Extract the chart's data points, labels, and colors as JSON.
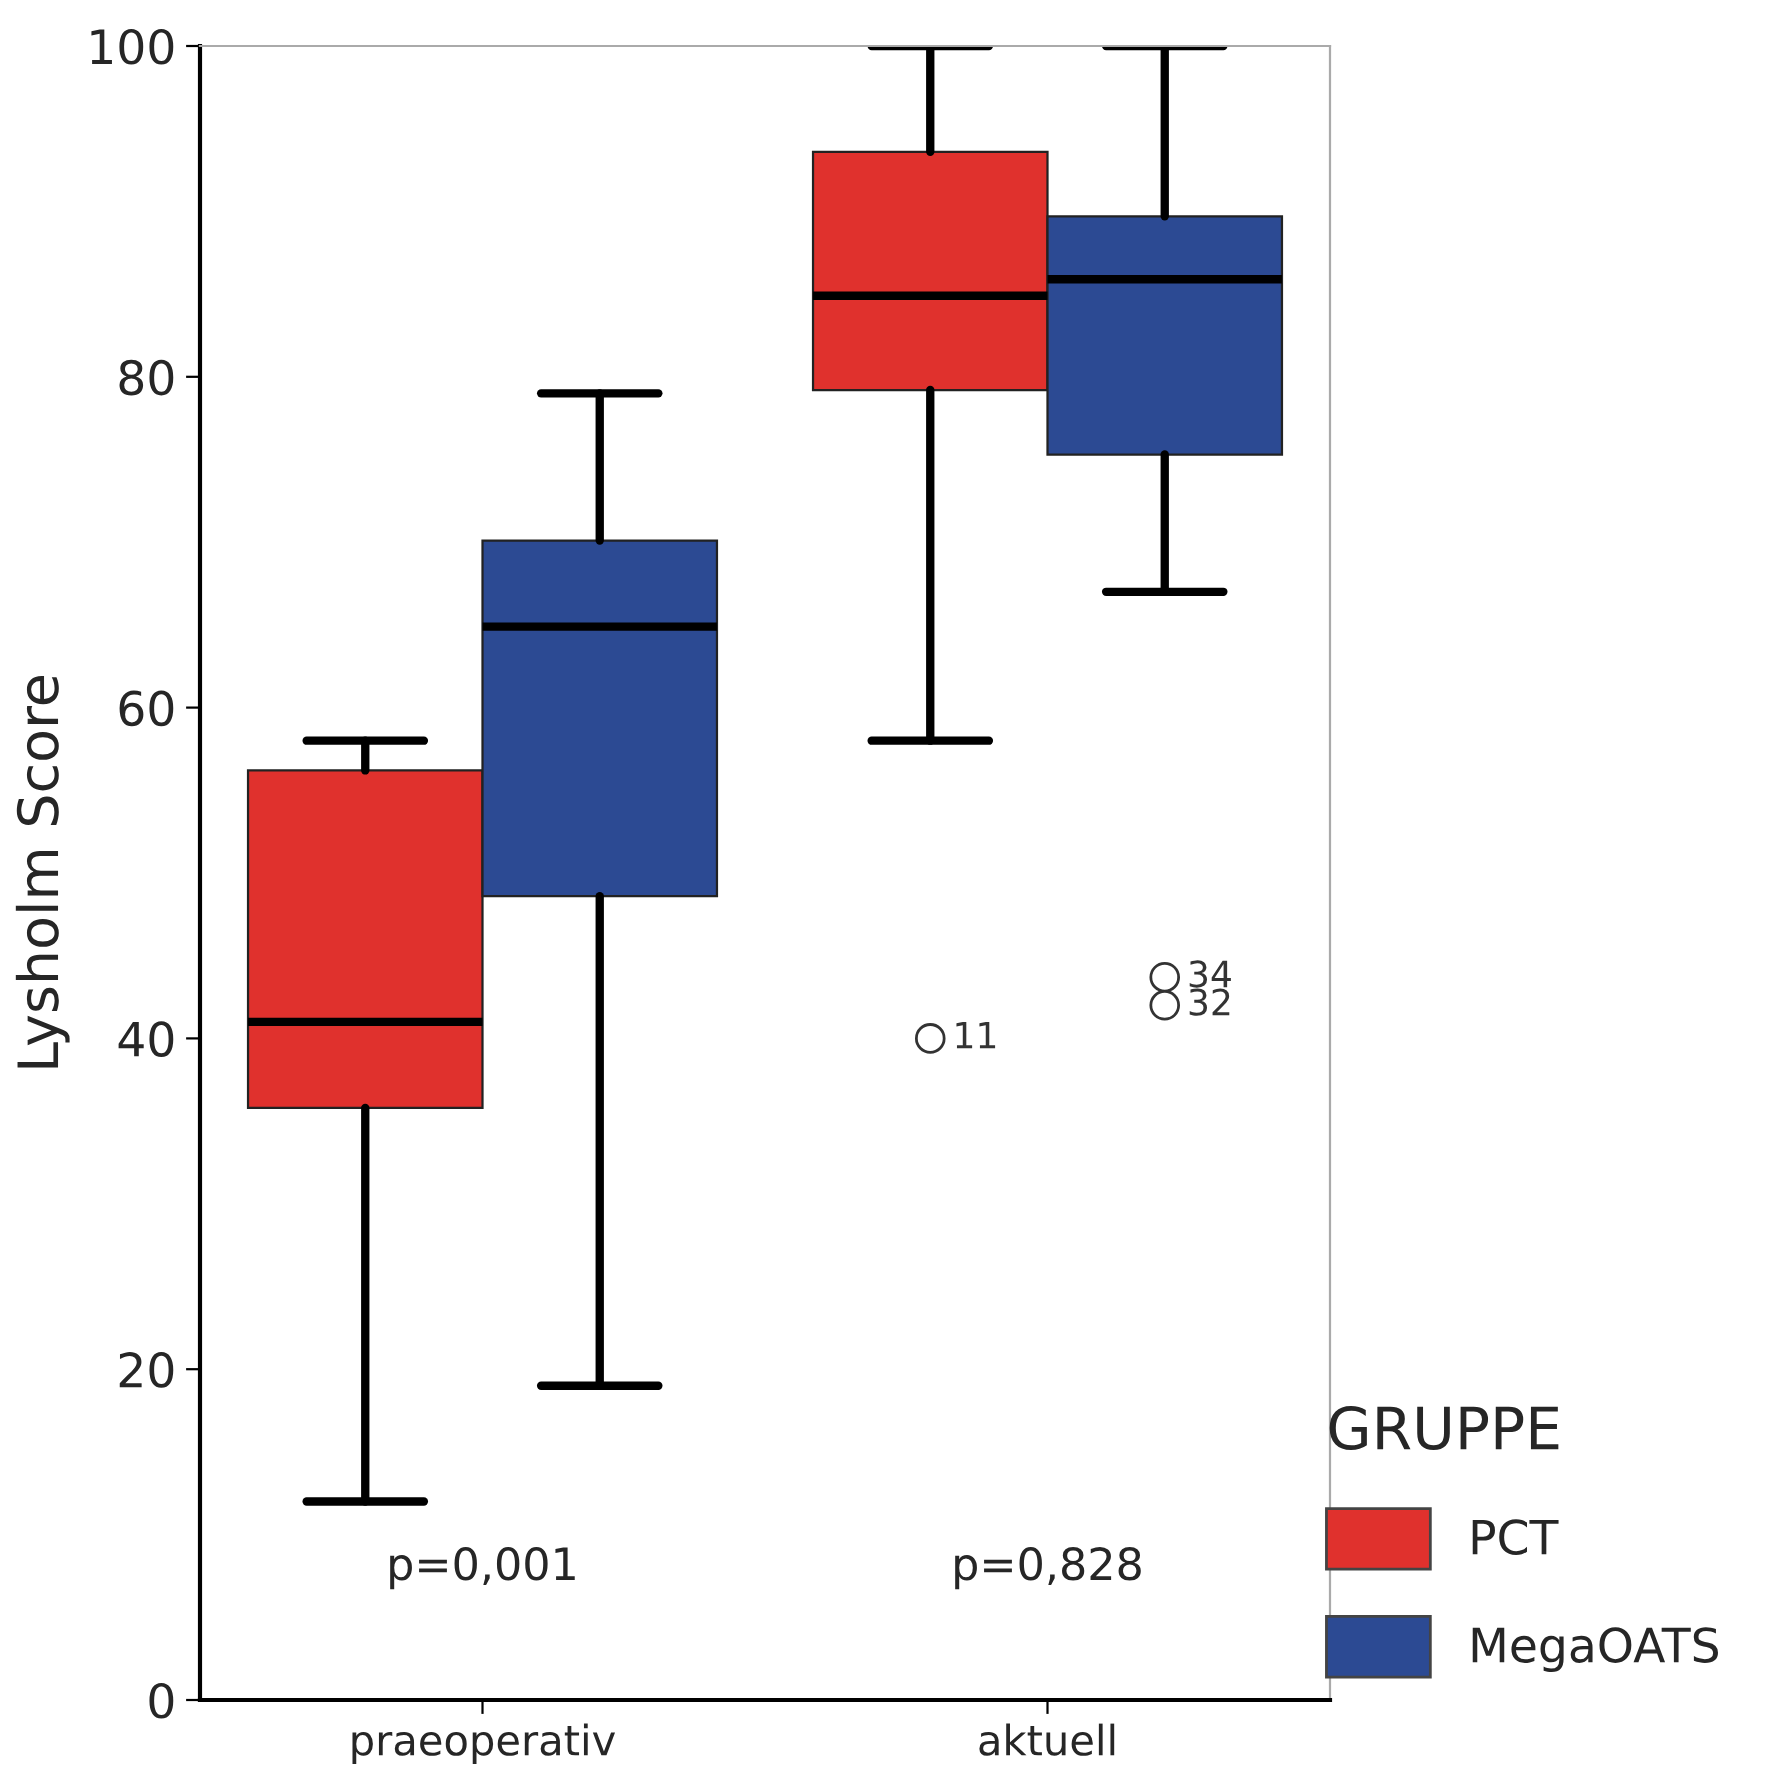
{
  "chart_data": {
    "type": "box",
    "ylabel": "Lysholm Score",
    "legend_title": "GRUPPE",
    "legend": "bottom right",
    "grid": false,
    "categories": [
      "praeoperativ",
      "aktuell"
    ],
    "ylim": [
      0,
      100
    ],
    "yticks": [
      0,
      20,
      40,
      60,
      80,
      100
    ],
    "series": [
      {
        "name": "PCT",
        "color": "#e0312d",
        "boxes": [
          {
            "low": 12,
            "q1": 35.8,
            "median": 41,
            "q3": 56.2,
            "high": 58
          },
          {
            "low": 58,
            "q1": 79.2,
            "median": 84.9,
            "q3": 93.6,
            "high": 100,
            "outliers": [
              40
            ]
          }
        ]
      },
      {
        "name": "MegaOATS",
        "color": "#2c4a93",
        "boxes": [
          {
            "low": 19,
            "q1": 48.6,
            "median": 64.9,
            "q3": 70.1,
            "high": 79
          },
          {
            "low": 67,
            "q1": 75.3,
            "median": 85.9,
            "q3": 89.7,
            "high": 100,
            "outliers": [
              43.7,
              42
            ]
          }
        ]
      }
    ],
    "annotations": [
      "p=0,001",
      "p=0,828",
      "11",
      "34",
      "32"
    ]
  }
}
